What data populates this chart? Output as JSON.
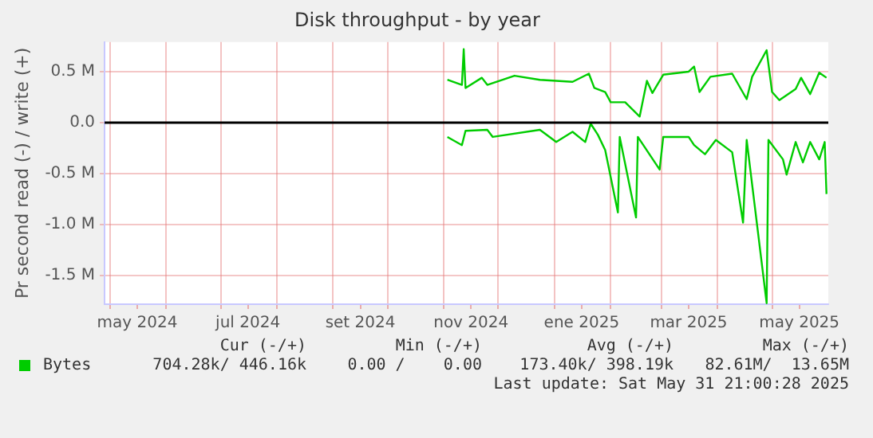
{
  "chart_data": {
    "type": "line",
    "title": "Disk throughput - by year",
    "ylabel": "Pr second read (-) / write (+)",
    "xlim": [
      "2024-04-28",
      "2025-06-01"
    ],
    "xticks": [
      {
        "value": "2024-05-01",
        "label": null
      },
      {
        "value": "2024-05-16",
        "label": "may 2024"
      },
      {
        "value": "2024-06-01",
        "label": null
      },
      {
        "value": "2024-07-01",
        "label": null
      },
      {
        "value": "2024-07-16",
        "label": "jul 2024"
      },
      {
        "value": "2024-08-01",
        "label": null
      },
      {
        "value": "2024-09-01",
        "label": null
      },
      {
        "value": "2024-09-16",
        "label": "set 2024"
      },
      {
        "value": "2024-10-01",
        "label": null
      },
      {
        "value": "2024-11-01",
        "label": null
      },
      {
        "value": "2024-11-16",
        "label": "nov 2024"
      },
      {
        "value": "2024-12-01",
        "label": null
      },
      {
        "value": "2025-01-01",
        "label": null
      },
      {
        "value": "2025-01-16",
        "label": "ene 2025"
      },
      {
        "value": "2025-02-01",
        "label": null
      },
      {
        "value": "2025-03-01",
        "label": null
      },
      {
        "value": "2025-03-16",
        "label": "mar 2025"
      },
      {
        "value": "2025-04-01",
        "label": null
      },
      {
        "value": "2025-05-01",
        "label": null
      },
      {
        "value": "2025-05-16",
        "label": "may 2025"
      }
    ],
    "ylim": [
      -1.78,
      0.79
    ],
    "yticks": [
      {
        "value": -1.5,
        "label": "-1.5 M"
      },
      {
        "value": -1.0,
        "label": "-1.0 M"
      },
      {
        "value": -0.5,
        "label": "-0.5 M"
      },
      {
        "value": 0,
        "label": "0.0"
      },
      {
        "value": 0.5,
        "label": "0.5 M"
      }
    ],
    "grid": true,
    "legend": "bottom left",
    "marker": "none",
    "line_style": "solid",
    "ref_lines": [
      {
        "axis": "y",
        "value": 0,
        "color": "#000000"
      }
    ],
    "series": [
      {
        "name": "Bytes",
        "color": "#00cc00",
        "x": [
          "2024-11-03",
          "2024-11-11",
          "2024-11-12",
          "2024-11-13",
          "2024-11-22",
          "2024-11-25",
          "2024-12-10",
          "2024-12-24",
          "2025-01-11",
          "2025-01-20",
          "2025-01-23",
          "2025-01-29",
          "2025-02-01",
          "2025-02-09",
          "2025-02-17",
          "2025-02-21",
          "2025-02-24",
          "2025-03-02",
          "2025-03-16",
          "2025-03-19",
          "2025-03-22",
          "2025-03-28",
          "2025-04-09",
          "2025-04-17",
          "2025-04-20",
          "2025-04-28",
          "2025-05-01",
          "2025-05-05",
          "2025-05-14",
          "2025-05-17",
          "2025-05-22",
          "2025-05-27",
          "2025-05-31"
        ],
        "values": [
          0.42,
          0.37,
          0.72,
          0.34,
          0.44,
          0.37,
          0.46,
          0.42,
          0.4,
          0.48,
          0.34,
          0.3,
          0.2,
          0.2,
          0.06,
          0.41,
          0.29,
          0.47,
          0.5,
          0.55,
          0.3,
          0.45,
          0.48,
          0.23,
          0.45,
          0.71,
          0.3,
          0.22,
          0.33,
          0.44,
          0.28,
          0.49,
          0.44
        ]
      },
      {
        "color": "#00cc00",
        "x": [
          "2024-11-03",
          "2024-11-11",
          "2024-11-13",
          "2024-11-25",
          "2024-11-28",
          "2024-12-24",
          "2025-01-02",
          "2025-01-11",
          "2025-01-18",
          "2025-01-21",
          "2025-01-25",
          "2025-01-29",
          "2025-02-05",
          "2025-02-06",
          "2025-02-15",
          "2025-02-16",
          "2025-02-28",
          "2025-03-02",
          "2025-03-16",
          "2025-03-19",
          "2025-03-25",
          "2025-03-31",
          "2025-04-09",
          "2025-04-15",
          "2025-04-17",
          "2025-04-28",
          "2025-04-29",
          "2025-05-07",
          "2025-05-09",
          "2025-05-14",
          "2025-05-18",
          "2025-05-22",
          "2025-05-27",
          "2025-05-30",
          "2025-05-31"
        ],
        "values": [
          -0.14,
          -0.22,
          -0.08,
          -0.07,
          -0.14,
          -0.07,
          -0.19,
          -0.09,
          -0.19,
          -0.01,
          -0.12,
          -0.27,
          -0.88,
          -0.14,
          -0.93,
          -0.14,
          -0.46,
          -0.14,
          -0.14,
          -0.22,
          -0.31,
          -0.17,
          -0.29,
          -0.98,
          -0.17,
          -1.77,
          -0.17,
          -0.36,
          -0.51,
          -0.19,
          -0.39,
          -0.19,
          -0.36,
          -0.19,
          -0.7
        ]
      }
    ],
    "annotations": [
      "Cur (-/+)",
      "Min (-/+)",
      "Avg (-/+)",
      "Max (-/+)",
      "704.28k/ 446.16k",
      "0.00 /    0.00",
      "173.40k/ 398.19k",
      "82.61M/  13.65M",
      "Last update: Sat May 31 21:00:28 2025"
    ]
  }
}
